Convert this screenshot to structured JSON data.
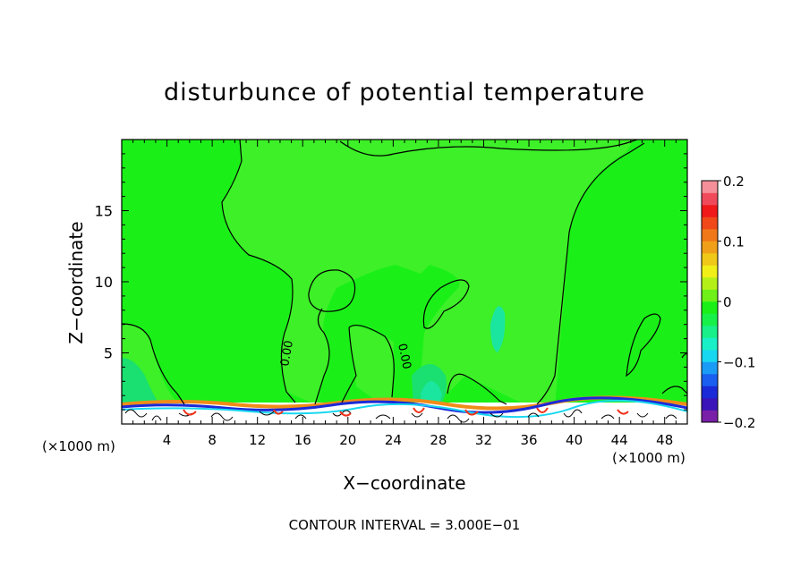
{
  "chart_data": {
    "type": "heatmap",
    "title": "disturbunce of potential temperature",
    "xlabel": "X−coordinate",
    "ylabel": "Z−coordinate",
    "x_unit_left": "(×1000 m)",
    "x_unit_right": "(×1000 m)",
    "xlim": [
      0,
      50
    ],
    "ylim": [
      0,
      20
    ],
    "x_ticks": [
      "4",
      "8",
      "12",
      "16",
      "20",
      "24",
      "28",
      "32",
      "36",
      "40",
      "44",
      "48"
    ],
    "y_ticks": [
      "5",
      "10",
      "15"
    ],
    "colorbar": {
      "range": [
        -0.2,
        0.2
      ],
      "labels": [
        "0.2",
        "0.1",
        "0",
        "−0.1",
        "−0.2"
      ],
      "colors": [
        "#7a1fa8",
        "#3a14b8",
        "#1a2ad8",
        "#1a5ff0",
        "#1a9bf5",
        "#18d7f0",
        "#1af0c8",
        "#19f08a",
        "#18f04a",
        "#1af018",
        "#6ef018",
        "#b4f018",
        "#f0f018",
        "#f0c818",
        "#f0a018",
        "#f07818",
        "#f04818",
        "#f01818",
        "#f04a5a",
        "#f5909a"
      ]
    },
    "contour_labels": [
      "0.00",
      "0.00"
    ],
    "footer": "CONTOUR INTERVAL = 3.000E−01",
    "grid": false,
    "background_value": 0.0
  }
}
